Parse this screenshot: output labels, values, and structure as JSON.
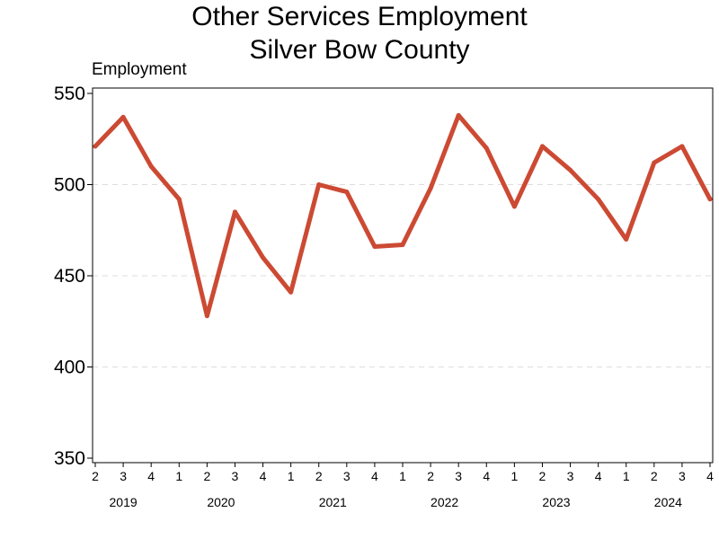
{
  "chart_data": {
    "type": "line",
    "title": "Other Services Employment",
    "subtitle": "Silver Bow County",
    "ylabel": "Employment",
    "xlabel": "",
    "ylim": [
      350,
      550
    ],
    "yticks": [
      350,
      400,
      450,
      500,
      550
    ],
    "grid": "horizontal-dashed",
    "legend": "none",
    "line_color": "#cc4a33",
    "years": [
      {
        "label": "2019",
        "first_index": 0,
        "count": 3
      },
      {
        "label": "2020",
        "first_index": 3,
        "count": 4
      },
      {
        "label": "2021",
        "first_index": 7,
        "count": 4
      },
      {
        "label": "2022",
        "first_index": 11,
        "count": 4
      },
      {
        "label": "2023",
        "first_index": 15,
        "count": 4
      },
      {
        "label": "2024",
        "first_index": 19,
        "count": 4
      }
    ],
    "quarters": [
      "2",
      "3",
      "4",
      "1",
      "2",
      "3",
      "4",
      "1",
      "2",
      "3",
      "4",
      "1",
      "2",
      "3",
      "4",
      "1",
      "2",
      "3",
      "4",
      "1",
      "2",
      "3",
      "4"
    ],
    "x": [
      "2019 Q2",
      "2019 Q3",
      "2019 Q4",
      "2020 Q1",
      "2020 Q2",
      "2020 Q3",
      "2020 Q4",
      "2021 Q1",
      "2021 Q2",
      "2021 Q3",
      "2021 Q4",
      "2022 Q1",
      "2022 Q2",
      "2022 Q3",
      "2022 Q4",
      "2023 Q1",
      "2023 Q2",
      "2023 Q3",
      "2023 Q4",
      "2024 Q1",
      "2024 Q2",
      "2024 Q3",
      "2024 Q4"
    ],
    "series": [
      {
        "values": [
          521,
          537,
          510,
          492,
          428,
          485,
          460,
          441,
          500,
          496,
          466,
          467,
          498,
          538,
          520,
          488,
          521,
          508,
          492,
          470,
          512,
          521,
          492
        ]
      }
    ]
  }
}
